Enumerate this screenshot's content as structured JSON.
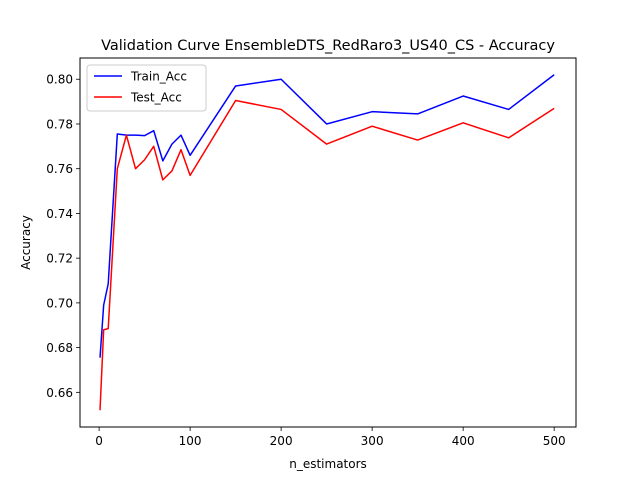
{
  "chart_data": {
    "type": "line",
    "title": "Validation Curve EnsembleDTS_RedRaro3_US40_CS - Accuracy",
    "xlabel": "n_estimators",
    "ylabel": "Accuracy",
    "xlim": [
      -21,
      524
    ],
    "ylim": [
      0.6445,
      0.8095
    ],
    "xticks": [
      0,
      100,
      200,
      300,
      400,
      500
    ],
    "yticks": [
      0.66,
      0.68,
      0.7,
      0.72,
      0.74,
      0.76,
      0.78,
      0.8
    ],
    "x": [
      1,
      5,
      10,
      20,
      30,
      40,
      50,
      60,
      70,
      80,
      90,
      100,
      150,
      200,
      250,
      300,
      350,
      400,
      450,
      500
    ],
    "series": [
      {
        "name": "Train_Acc",
        "color": "#0000ff",
        "values": [
          0.6755,
          0.699,
          0.7085,
          0.7755,
          0.775,
          0.775,
          0.7748,
          0.777,
          0.7635,
          0.771,
          0.775,
          0.766,
          0.797,
          0.8,
          0.78,
          0.7855,
          0.7845,
          0.7925,
          0.7865,
          0.802
        ]
      },
      {
        "name": "Test_Acc",
        "color": "#ff0000",
        "values": [
          0.652,
          0.688,
          0.6885,
          0.76,
          0.775,
          0.76,
          0.764,
          0.77,
          0.755,
          0.759,
          0.7685,
          0.757,
          0.7905,
          0.7865,
          0.771,
          0.779,
          0.7728,
          0.7805,
          0.7738,
          0.787
        ]
      }
    ],
    "legend": "upper left",
    "grid": false
  }
}
